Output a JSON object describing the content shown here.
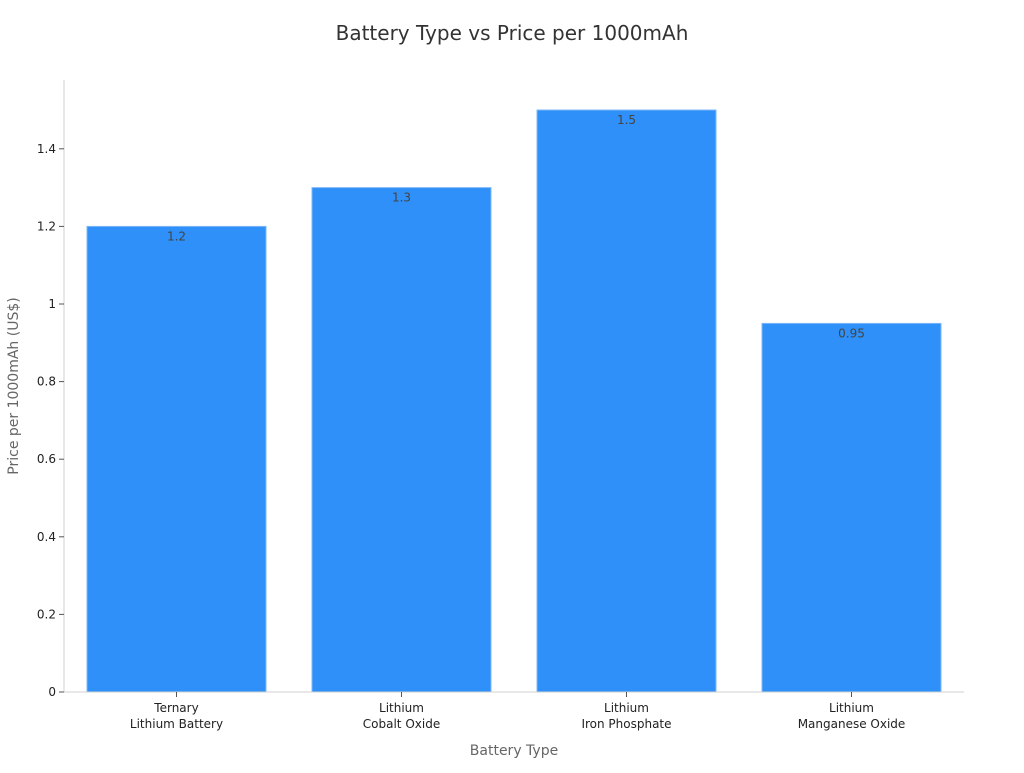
{
  "chart_data": {
    "type": "bar",
    "title": "Battery Type vs Price per 1000mAh",
    "xlabel": "Battery Type",
    "ylabel": "Price per 1000mAh (US$)",
    "categories": [
      [
        "Ternary",
        "Lithium Battery"
      ],
      [
        "Lithium",
        "Cobalt Oxide"
      ],
      [
        "Lithium",
        "Iron Phosphate"
      ],
      [
        "Lithium",
        "Manganese Oxide"
      ]
    ],
    "values": [
      1.2,
      1.3,
      1.5,
      0.95
    ],
    "data_labels": [
      "1.2",
      "1.3",
      "1.5",
      "0.95"
    ],
    "ylim": [
      0,
      1.575
    ],
    "yticks": [
      0,
      0.2,
      0.4,
      0.6,
      0.8,
      1,
      1.2,
      1.4
    ],
    "ytick_labels": [
      "0",
      "0.2",
      "0.4",
      "0.6",
      "0.8",
      "1",
      "1.2",
      "1.4"
    ],
    "bar_color": "#2e90f8",
    "grid": false,
    "legend": "none"
  }
}
